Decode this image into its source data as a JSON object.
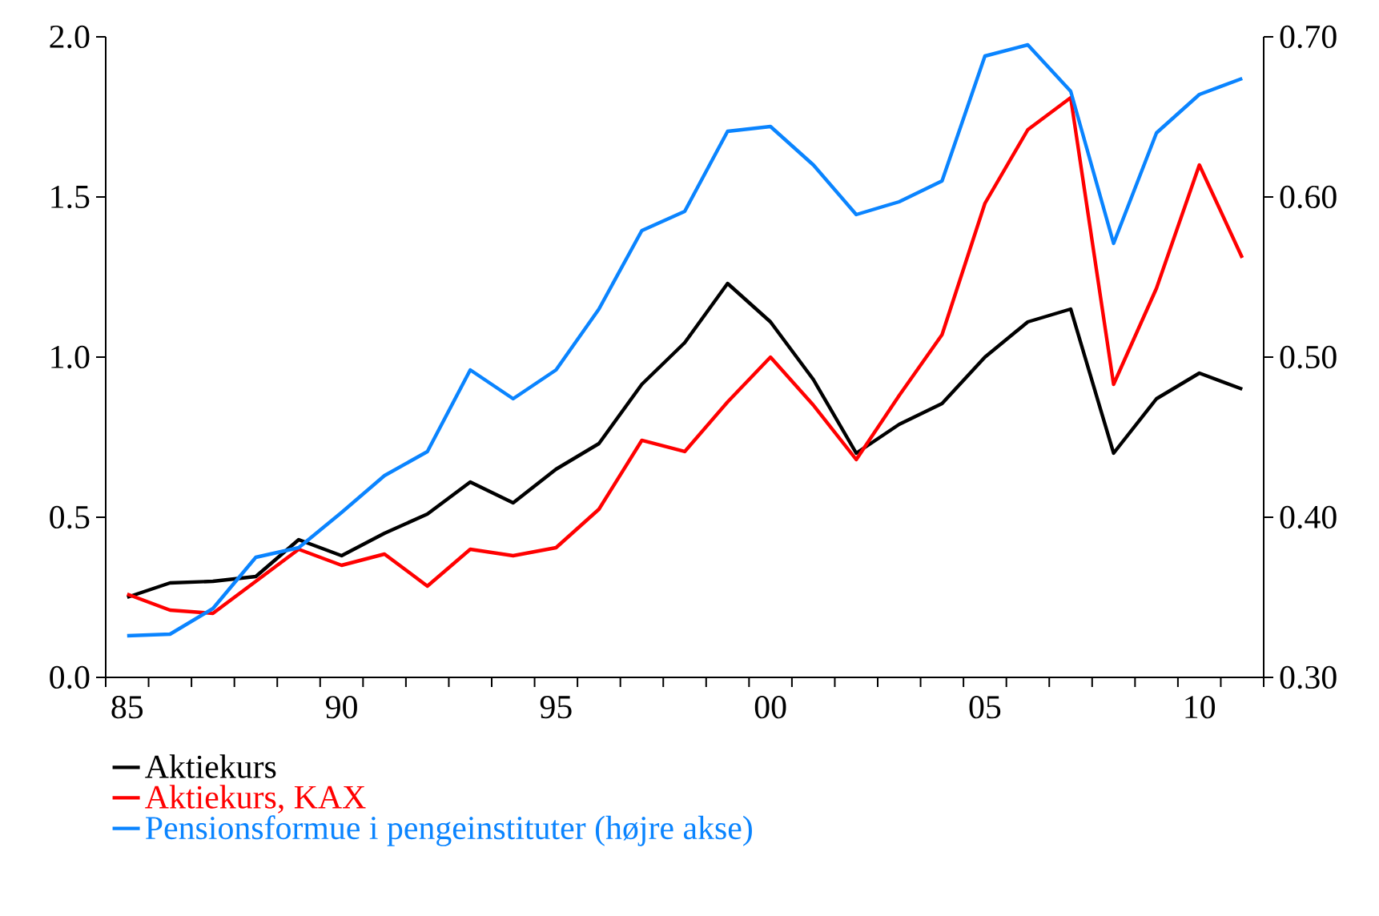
{
  "chart_data": {
    "type": "line",
    "categories": [
      "85",
      null,
      null,
      null,
      null,
      "90",
      null,
      null,
      null,
      null,
      "95",
      null,
      null,
      null,
      null,
      "00",
      null,
      null,
      null,
      null,
      "05",
      null,
      null,
      null,
      null,
      "10",
      null
    ],
    "series": [
      {
        "name": "Aktiekurs",
        "color": "#000000",
        "values": [
          0.25,
          0.295,
          0.3,
          0.315,
          0.43,
          0.38,
          0.45,
          0.51,
          0.61,
          0.545,
          0.65,
          0.73,
          0.915,
          1.045,
          1.23,
          1.11,
          0.93,
          0.7,
          0.79,
          0.855,
          1.0,
          1.11,
          1.15,
          0.7,
          0.87,
          0.95,
          0.9
        ]
      },
      {
        "name": "Aktiekurs, KAX",
        "color": "#ff0000",
        "values": [
          0.26,
          0.21,
          0.2,
          0.3,
          0.4,
          0.35,
          0.385,
          0.285,
          0.4,
          0.38,
          0.405,
          0.525,
          0.74,
          0.705,
          0.86,
          1.0,
          0.85,
          0.68,
          0.88,
          1.07,
          1.48,
          1.71,
          1.81,
          0.915,
          1.215,
          1.6,
          1.31
        ]
      },
      {
        "name": "Pensionsformue i pengeinstituter (højre akse)",
        "color": "#0a84ff",
        "axis": "y2",
        "values": [
          0.326,
          0.327,
          0.343,
          0.375,
          0.381,
          0.403,
          0.426,
          0.441,
          0.492,
          0.474,
          0.492,
          0.53,
          0.579,
          0.591,
          0.641,
          0.644,
          0.62,
          0.589,
          0.597,
          0.61,
          0.688,
          0.695,
          0.666,
          0.571,
          0.64,
          0.664,
          0.674
        ]
      }
    ],
    "ylim": [
      0,
      2.0
    ],
    "yticks": [
      {
        "value": 0,
        "label": "0.0"
      },
      {
        "value": 0.5,
        "label": "0.5"
      },
      {
        "value": 1.0,
        "label": "1.0"
      },
      {
        "value": 1.5,
        "label": "1.5"
      },
      {
        "value": 2.0,
        "label": "2.0"
      }
    ],
    "y2lim": [
      0.3,
      0.7
    ],
    "y2ticks": [
      {
        "value": 0.3,
        "label": "0.30"
      },
      {
        "value": 0.4,
        "label": "0.40"
      },
      {
        "value": 0.5,
        "label": "0.50"
      },
      {
        "value": 0.6,
        "label": "0.60"
      },
      {
        "value": 0.7,
        "label": "0.70"
      }
    ],
    "legend": "bottom"
  }
}
